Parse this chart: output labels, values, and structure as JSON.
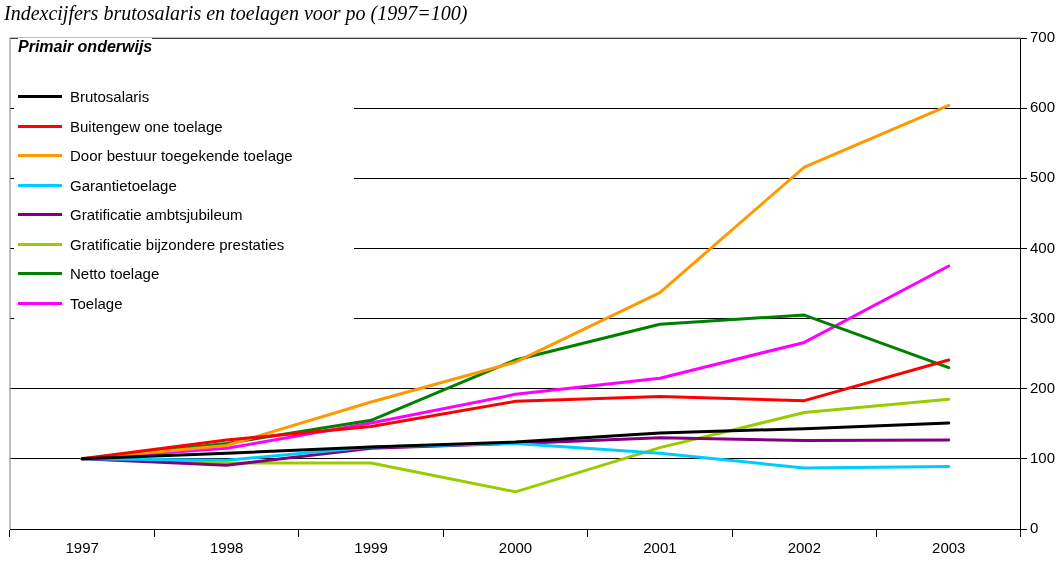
{
  "chart_data": {
    "type": "line",
    "title": "Indexcijfers brutosalaris en toelagen voor po (1997=100)",
    "subtitle": "Primair onderwijs",
    "categories": [
      "1997",
      "1998",
      "1999",
      "2000",
      "2001",
      "2002",
      "2003"
    ],
    "series": [
      {
        "name": "Brutosalaris",
        "color": "#000000",
        "values": [
          100,
          108,
          117,
          124,
          137,
          143,
          151
        ]
      },
      {
        "name": "Buitengew one toelage",
        "color": "#ff0000",
        "values": [
          100,
          127,
          146,
          182,
          189,
          183,
          241
        ]
      },
      {
        "name": "Door bestuur toegekende toelage",
        "color": "#ff9900",
        "values": [
          100,
          119,
          181,
          238,
          337,
          516,
          604
        ]
      },
      {
        "name": "Garantietoelage",
        "color": "#00ccff",
        "values": [
          100,
          98,
          117,
          122,
          108,
          87,
          89
        ]
      },
      {
        "name": "Gratificatie ambtsjubileum",
        "color": "#800080",
        "values": [
          100,
          91,
          115,
          122,
          130,
          126,
          127
        ]
      },
      {
        "name": "Gratificatie bijzondere prestaties",
        "color": "#99cc00",
        "values": [
          100,
          94,
          94,
          53,
          116,
          166,
          185
        ]
      },
      {
        "name": "Netto toelage",
        "color": "#008000",
        "values": [
          100,
          122,
          155,
          241,
          292,
          305,
          230
        ]
      },
      {
        "name": "Toelage",
        "color": "#ff00ff",
        "values": [
          100,
          115,
          151,
          192,
          215,
          266,
          375
        ]
      }
    ],
    "ylim": [
      0,
      700
    ],
    "yticks": [
      0,
      100,
      200,
      300,
      400,
      500,
      600,
      700
    ],
    "grid": "y",
    "legend": "top left",
    "marker": "none",
    "line_style": "solid"
  }
}
